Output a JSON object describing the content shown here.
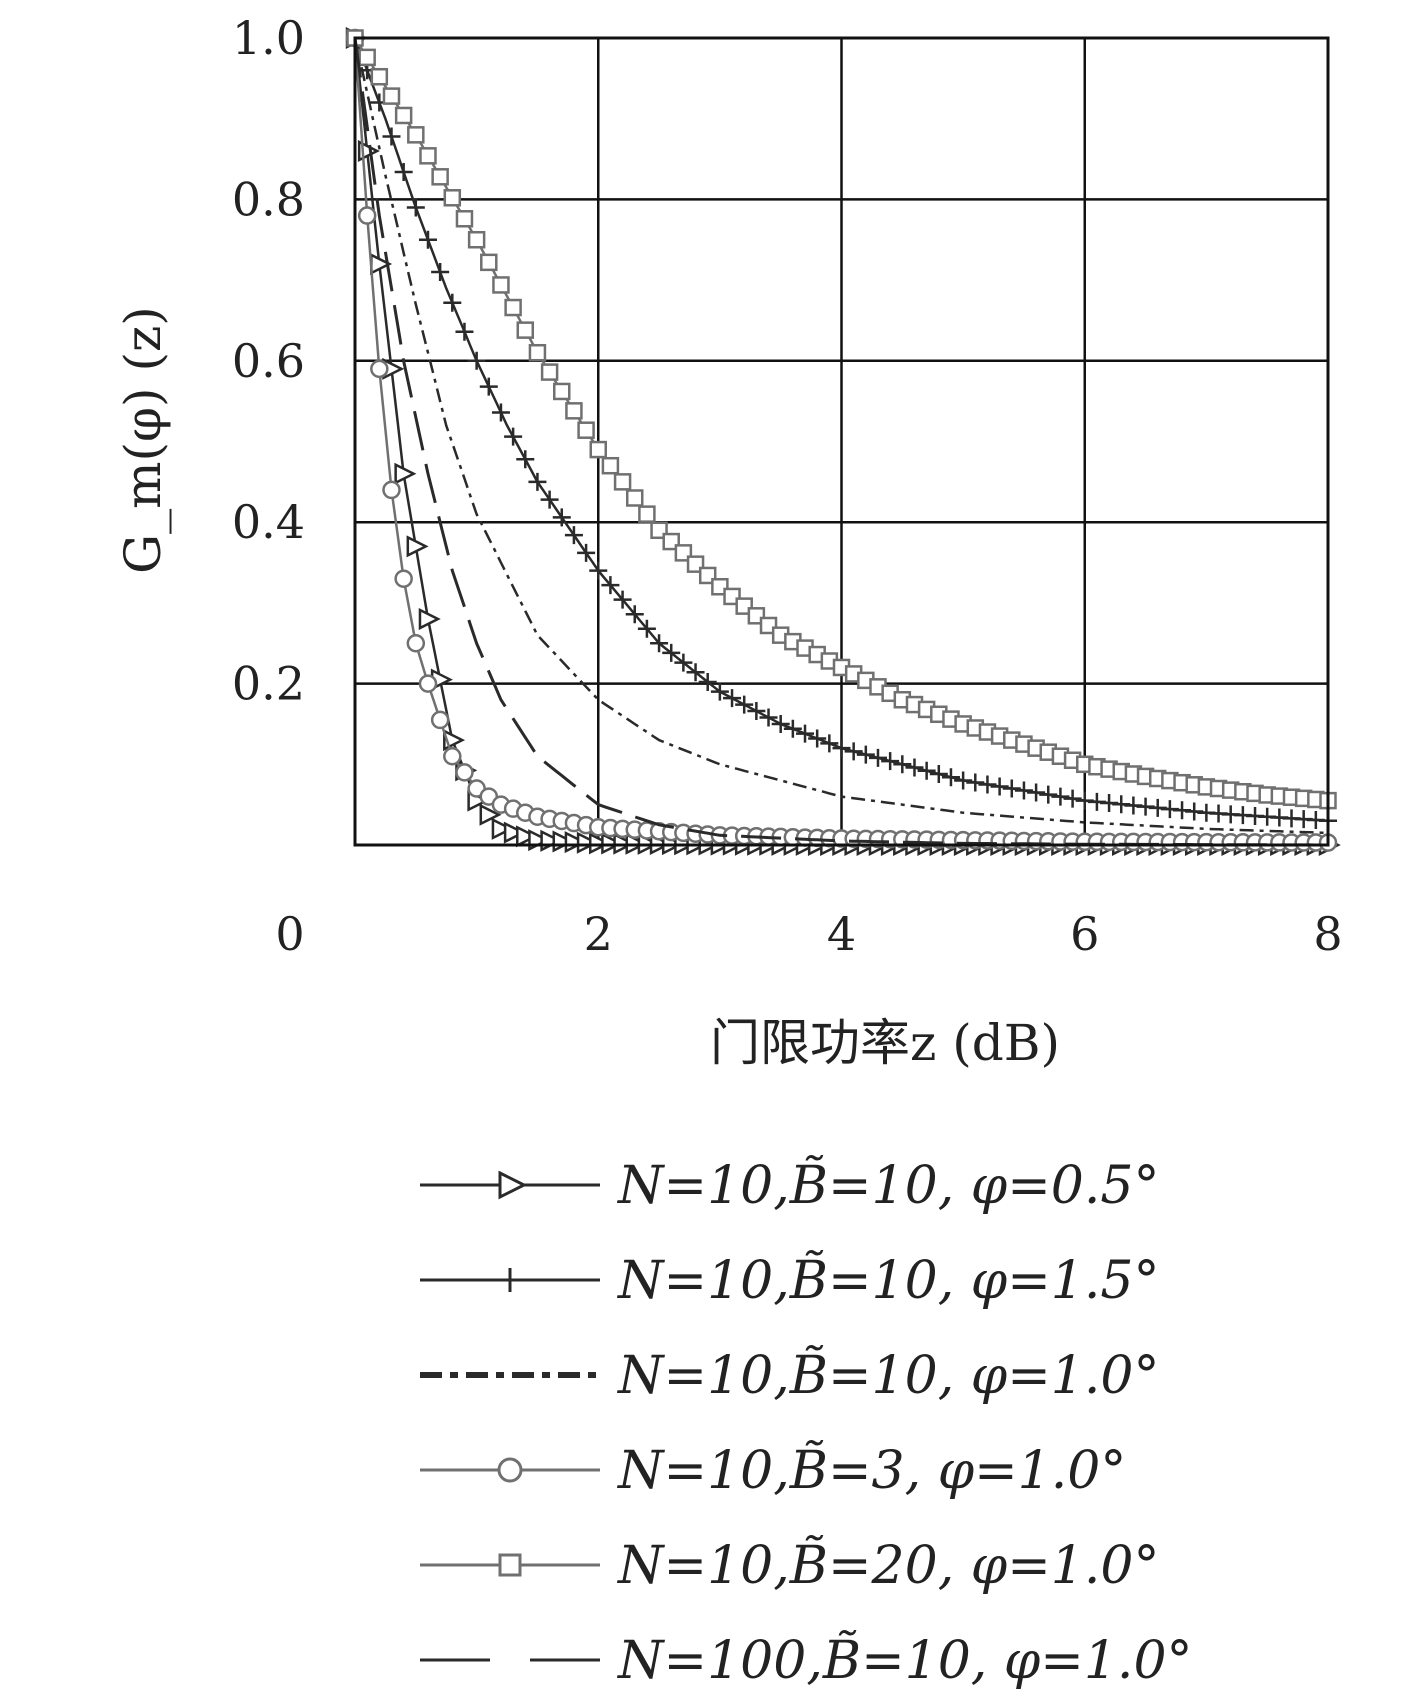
{
  "chart_data": {
    "type": "line",
    "xlabel": "门限功率z (dB)",
    "ylabel": "G_m(φ) (z)",
    "xlim": [
      0,
      8
    ],
    "ylim": [
      0,
      1
    ],
    "x_ticks": [
      "0",
      "2",
      "4",
      "6",
      "8"
    ],
    "y_ticks": [
      "0.2",
      "0.4",
      "0.6",
      "0.8",
      "1.0"
    ],
    "grid": true,
    "legend_position": "bottom",
    "series": [
      {
        "name": "N=10,B̃=10, φ=0.5°",
        "style": "solid-triangle-right",
        "color": "#2a2a2a",
        "x": [
          0,
          0.2,
          0.4,
          0.6,
          0.8,
          1.0,
          1.2,
          1.5,
          2,
          3,
          4,
          5,
          6,
          7,
          8
        ],
        "y": [
          1.0,
          0.72,
          0.46,
          0.28,
          0.13,
          0.055,
          0.02,
          0.006,
          0.002,
          0.0005,
          0,
          0,
          0,
          0,
          0
        ]
      },
      {
        "name": "N=10,B̃=10, φ=1.5°",
        "style": "solid-plus",
        "color": "#2a2a2a",
        "x": [
          0,
          0.25,
          0.5,
          0.75,
          1.0,
          1.25,
          1.5,
          2.0,
          2.5,
          3.0,
          3.5,
          4.0,
          5.0,
          6.0,
          7.0,
          8.0
        ],
        "y": [
          1.0,
          0.9,
          0.79,
          0.69,
          0.6,
          0.52,
          0.45,
          0.34,
          0.25,
          0.19,
          0.15,
          0.12,
          0.08,
          0.055,
          0.04,
          0.03
        ]
      },
      {
        "name": "N=10,B̃=10, φ=1.0°",
        "style": "dash-dot",
        "color": "#2a2a2a",
        "x": [
          0,
          0.25,
          0.5,
          0.75,
          1.0,
          1.5,
          2.0,
          2.5,
          3.0,
          4.0,
          5.0,
          6.0,
          7.0,
          8.0
        ],
        "y": [
          1.0,
          0.83,
          0.67,
          0.52,
          0.41,
          0.26,
          0.18,
          0.13,
          0.1,
          0.06,
          0.04,
          0.028,
          0.02,
          0.015
        ]
      },
      {
        "name": "N=10,B̃=3, φ=1.0°",
        "style": "solid-circle",
        "color": "#707070",
        "x": [
          0,
          0.1,
          0.2,
          0.3,
          0.4,
          0.5,
          0.6,
          0.7,
          0.8,
          1.0,
          1.2,
          1.5,
          2.0,
          3.0,
          4.0,
          6.0,
          8.0
        ],
        "y": [
          1.0,
          0.78,
          0.59,
          0.44,
          0.33,
          0.25,
          0.2,
          0.155,
          0.11,
          0.07,
          0.05,
          0.035,
          0.022,
          0.012,
          0.008,
          0.004,
          0.003
        ]
      },
      {
        "name": "N=10,B̃=20, φ=1.0°",
        "style": "solid-square",
        "color": "#707070",
        "x": [
          0,
          0.5,
          1.0,
          1.5,
          2.0,
          2.5,
          3.0,
          3.5,
          4.0,
          4.5,
          5.0,
          5.5,
          6.0,
          6.5,
          7.0,
          7.5,
          8.0
        ],
        "y": [
          1.0,
          0.88,
          0.75,
          0.61,
          0.49,
          0.39,
          0.32,
          0.26,
          0.22,
          0.18,
          0.15,
          0.125,
          0.1,
          0.085,
          0.072,
          0.062,
          0.055
        ]
      },
      {
        "name": "N=100,B̃=10, φ=1.0°",
        "style": "long-dash",
        "color": "#2a2a2a",
        "x": [
          0,
          0.2,
          0.4,
          0.6,
          0.8,
          1.0,
          1.2,
          1.5,
          2.0,
          2.5,
          3.0,
          4.0,
          5.0,
          6.0,
          8.0
        ],
        "y": [
          1.0,
          0.78,
          0.6,
          0.46,
          0.34,
          0.25,
          0.18,
          0.11,
          0.05,
          0.025,
          0.012,
          0.005,
          0.002,
          0.001,
          0
        ]
      }
    ]
  }
}
